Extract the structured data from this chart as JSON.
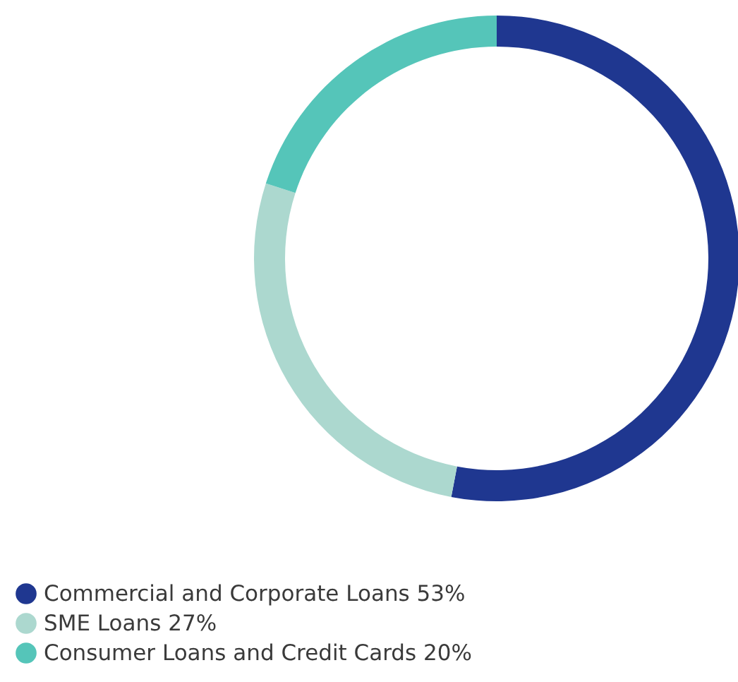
{
  "chart_data": {
    "type": "donut",
    "categories": [
      "Commercial and Corporate Loans 53%",
      "SME Loans 27%",
      "Consumer Loans and Credit Cards 20%"
    ],
    "values": [
      53,
      27,
      20
    ],
    "colors": [
      "#1f3790",
      "#acd8cf",
      "#55c5b9"
    ],
    "legend": "bottom left"
  }
}
